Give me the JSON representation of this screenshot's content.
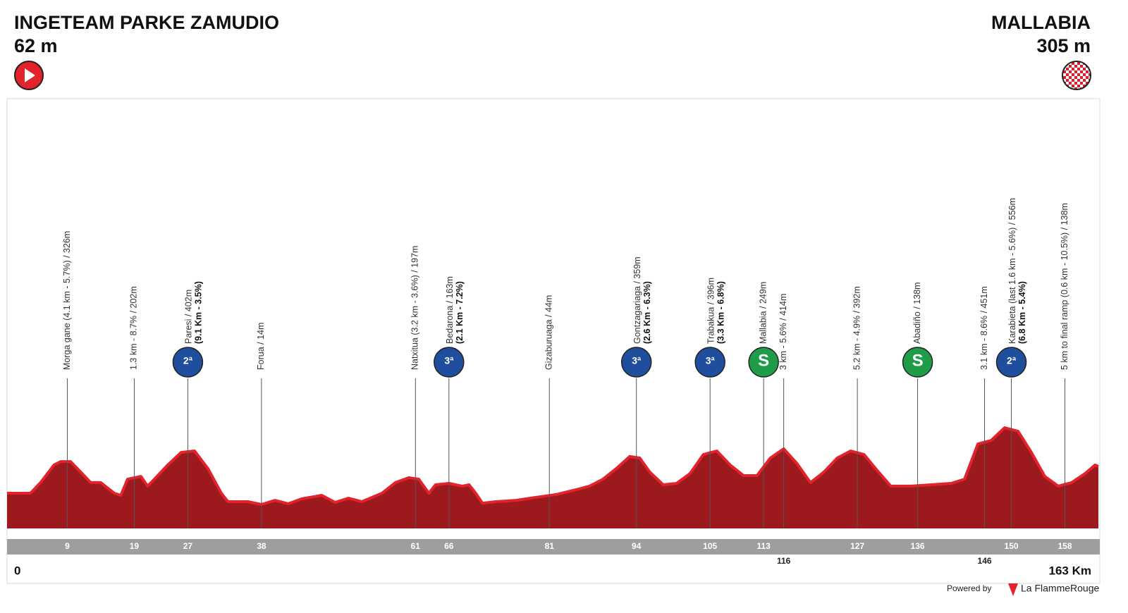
{
  "chart_data": {
    "type": "area",
    "start": {
      "name": "INGETEAM PARKE ZAMUDIO",
      "elevation": "62 m"
    },
    "finish": {
      "name": "MALLABIA",
      "elevation": "305 m"
    },
    "color": "#9c1a1d",
    "edge_color": "#e3232b",
    "xlim": [
      0,
      163
    ],
    "ylim": [
      -150,
      850
    ],
    "xticks": [
      0,
      {
        "value": 163,
        "label": "163 Km"
      }
    ],
    "x": [
      0,
      3.5,
      5,
      7,
      8,
      9.5,
      11,
      12.5,
      14,
      16,
      17,
      18,
      20,
      21,
      22,
      24,
      26,
      28,
      30,
      32,
      33,
      36,
      38,
      40,
      42,
      44,
      47,
      49,
      51,
      53,
      56,
      58,
      60,
      61.5,
      63,
      64,
      66,
      68,
      69,
      70,
      71,
      73,
      76,
      79,
      82,
      85,
      87,
      89,
      91,
      93,
      94.5,
      96,
      98,
      100,
      102,
      104,
      106,
      108,
      110,
      112,
      114,
      116,
      118,
      120,
      122,
      124,
      126,
      128,
      130,
      132,
      135,
      138,
      141,
      143,
      145,
      147,
      149,
      151,
      153,
      155,
      157,
      159,
      161,
      162.5,
      163
    ],
    "values": [
      88,
      88,
      160,
      279,
      302,
      302,
      231,
      160,
      160,
      88,
      74,
      183,
      202,
      136,
      183,
      279,
      364,
      374,
      255,
      88,
      31,
      31,
      12,
      40,
      17,
      50,
      74,
      26,
      55,
      31,
      88,
      160,
      193,
      183,
      88,
      145,
      155,
      136,
      145,
      88,
      21,
      31,
      40,
      60,
      79,
      112,
      136,
      183,
      255,
      336,
      326,
      231,
      145,
      155,
      221,
      350,
      374,
      279,
      207,
      207,
      326,
      388,
      288,
      160,
      231,
      326,
      374,
      350,
      240,
      136,
      136,
      145,
      155,
      183,
      421,
      445,
      531,
      507,
      364,
      202,
      136,
      160,
      221,
      279,
      269
    ],
    "markers": [
      {
        "km": 9,
        "label": "Morga gane (4.1 km - 5.7%) / 326m"
      },
      {
        "km": 19,
        "label": "1.3 km - 8.7% / 202m"
      },
      {
        "km": 27,
        "label": "Paresi / 402m",
        "detail": "(9.1 Km - 3.5%)",
        "badge": "2ª",
        "badge_color": "#1f4e9c"
      },
      {
        "km": 38,
        "label": "Forua / 14m"
      },
      {
        "km": 61,
        "label": "Natxitua (3.2 km - 3.6%) / 197m"
      },
      {
        "km": 66,
        "label": "Bedarona / 163m",
        "detail": "(2.1 Km - 7.2%)",
        "badge": "3ª",
        "badge_color": "#1f4e9c"
      },
      {
        "km": 81,
        "label": "Gizaburuaga / 44m"
      },
      {
        "km": 94,
        "label": "Gontzagariaga / 359m",
        "detail": "(2.6 Km - 6.3%)",
        "badge": "3ª",
        "badge_color": "#1f4e9c"
      },
      {
        "km": 105,
        "label": "Trabakua / 396m",
        "detail": "(3.3 Km - 6.8%)",
        "badge": "3ª",
        "badge_color": "#1f4e9c"
      },
      {
        "km": 113,
        "label": "Mallabia / 249m",
        "badge": "S",
        "badge_color": "#1e9c48"
      },
      {
        "km": 116,
        "label": "3 km - 5.6% / 414m",
        "tick_below": true
      },
      {
        "km": 127,
        "label": "5.2 km - 4.9% / 392m"
      },
      {
        "km": 136,
        "label": "Abadiño / 138m",
        "badge": "S",
        "badge_color": "#1e9c48"
      },
      {
        "km": 146,
        "label": "3.1 km - 8.6% / 451m",
        "tick_below": true
      },
      {
        "km": 150,
        "label": "Karabieta (last 1.6 km - 5.6%) / 556m",
        "detail": "(6.8 Km - 5.4%)",
        "badge": "2ª",
        "badge_color": "#1f4e9c"
      },
      {
        "km": 158,
        "label": "5 km to final ramp (0.6 km - 10.5%) / 138m"
      }
    ]
  },
  "footer": {
    "powered": "Powered by",
    "brand": "La FlammeRouge"
  }
}
